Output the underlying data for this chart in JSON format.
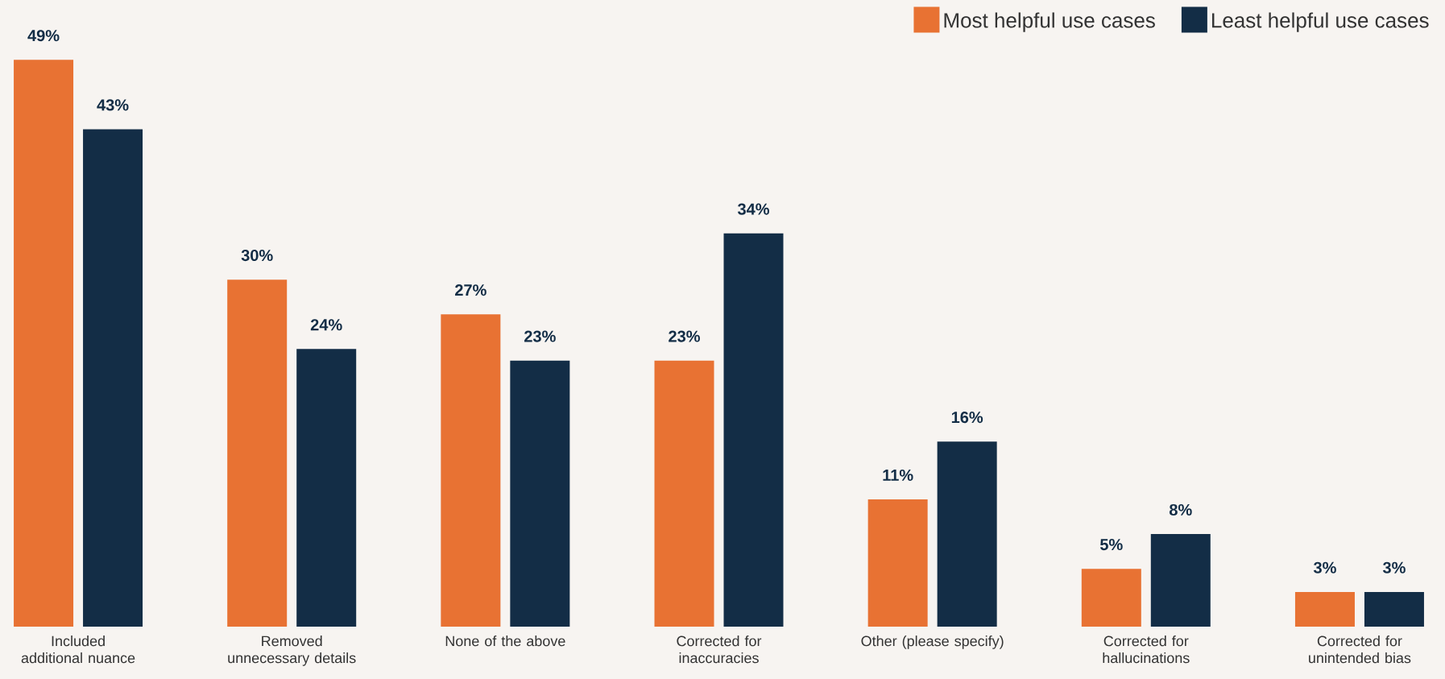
{
  "chart_data": {
    "type": "bar",
    "categories": [
      "Included additional nuance",
      "Removed unnecessary details",
      "None of the above",
      "Corrected for inaccuracies",
      "Other (please specify)",
      "Corrected for hallucinations",
      "Corrected for unintended bias"
    ],
    "series": [
      {
        "name": "Most helpful use cases",
        "color": "#e87233",
        "values": [
          49,
          30,
          27,
          23,
          11,
          5,
          3
        ],
        "value_labels": [
          "49%",
          "30%",
          "27%",
          "23%",
          "11%",
          "5%",
          "3%"
        ]
      },
      {
        "name": "Least helpful use cases",
        "color": "#132d46",
        "values": [
          43,
          24,
          23,
          34,
          16,
          8,
          3
        ],
        "value_labels": [
          "43%",
          "24%",
          "23%",
          "34%",
          "16%",
          "8%",
          "3%"
        ]
      }
    ],
    "legend": "top right"
  }
}
